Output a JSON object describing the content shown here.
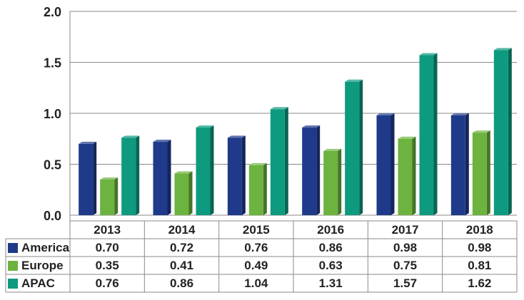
{
  "chart_data": {
    "type": "bar",
    "title": "",
    "xlabel": "",
    "ylabel": "",
    "categories": [
      "2013",
      "2014",
      "2015",
      "2016",
      "2017",
      "2018"
    ],
    "ylim": [
      0,
      2.0
    ],
    "yticks": [
      "0.0",
      "0.5",
      "1.0",
      "1.5",
      "2.0"
    ],
    "grid": true,
    "legend": "data-table-left",
    "series": [
      {
        "name": "America",
        "color": "#1f3a8a",
        "values": [
          0.7,
          0.72,
          0.76,
          0.86,
          0.98,
          0.98
        ],
        "labels": [
          "0.70",
          "0.72",
          "0.76",
          "0.86",
          "0.98",
          "0.98"
        ]
      },
      {
        "name": "Europe",
        "color": "#6cb33f",
        "values": [
          0.35,
          0.41,
          0.49,
          0.63,
          0.75,
          0.81
        ],
        "labels": [
          "0.35",
          "0.41",
          "0.49",
          "0.63",
          "0.75",
          "0.81"
        ]
      },
      {
        "name": "APAC",
        "color": "#0e9a7e",
        "values": [
          0.76,
          0.86,
          1.04,
          1.31,
          1.57,
          1.62
        ],
        "labels": [
          "0.76",
          "0.86",
          "1.04",
          "1.31",
          "1.57",
          "1.62"
        ]
      }
    ]
  }
}
